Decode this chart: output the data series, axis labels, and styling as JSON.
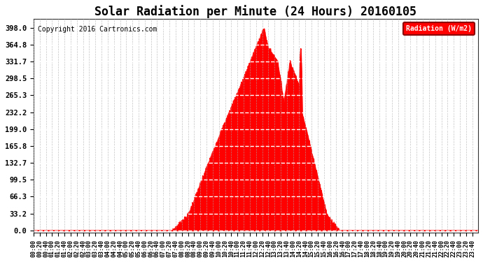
{
  "title": "Solar Radiation per Minute (24 Hours) 20160105",
  "copyright_text": "Copyright 2016 Cartronics.com",
  "legend_label": "Radiation (W/m2)",
  "fill_color": "#FF0000",
  "line_color": "#FF0000",
  "background_color": "#FFFFFF",
  "grid_color": "#AAAAAA",
  "ytick_labels": [
    "0.0",
    "33.2",
    "66.3",
    "99.5",
    "132.7",
    "165.8",
    "199.0",
    "232.2",
    "265.3",
    "298.5",
    "331.7",
    "364.8",
    "398.0"
  ],
  "ytick_values": [
    0.0,
    33.2,
    66.3,
    99.5,
    132.7,
    165.8,
    199.0,
    232.2,
    265.3,
    298.5,
    331.7,
    364.8,
    398.0
  ],
  "ymax": 415.0,
  "ymin": -5.0,
  "total_minutes": 1440,
  "dashed_line_color": "#FF0000",
  "legend_bg": "#FF0000",
  "legend_text_color": "#FFFFFF"
}
